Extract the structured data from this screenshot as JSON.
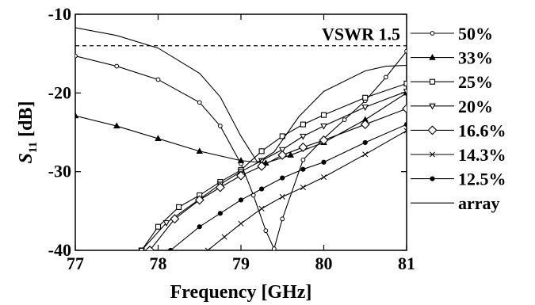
{
  "chart_data": {
    "type": "line",
    "xlabel": "Frequency [GHz]",
    "ylabel_main": "S",
    "ylabel_sub": "11",
    "ylabel_unit": " [dB]",
    "xlim": [
      77,
      81
    ],
    "ylim": [
      -40,
      -10
    ],
    "xticks": [
      77,
      78,
      79,
      80,
      81
    ],
    "yticks": [
      -10,
      -20,
      -30,
      -40
    ],
    "grid": false,
    "legend_position": "right-outside",
    "annotation": {
      "text": "VSWR 1.5",
      "y": -14.0
    },
    "series": [
      {
        "name": "50%",
        "marker": "circle-small",
        "points": [
          [
            77,
            -15.3
          ],
          [
            77.5,
            -16.6
          ],
          [
            78,
            -18.3
          ],
          [
            78.5,
            -21.2
          ],
          [
            78.75,
            -24.2
          ],
          [
            79,
            -29.0
          ],
          [
            79.15,
            -33.0
          ],
          [
            79.3,
            -37.5
          ],
          [
            79.4,
            -39.8
          ],
          [
            79.5,
            -36.0
          ],
          [
            79.75,
            -28.5
          ],
          [
            80,
            -25.8
          ],
          [
            80.25,
            -23.4
          ],
          [
            80.5,
            -21.0
          ],
          [
            80.75,
            -18.0
          ],
          [
            81,
            -14.7
          ]
        ]
      },
      {
        "name": "33%",
        "marker": "triangle",
        "points": [
          [
            77,
            -22.9
          ],
          [
            77.5,
            -24.2
          ],
          [
            78,
            -25.8
          ],
          [
            78.5,
            -27.4
          ],
          [
            79,
            -28.6
          ],
          [
            79.3,
            -28.9
          ],
          [
            79.6,
            -27.9
          ],
          [
            80,
            -26.3
          ],
          [
            80.5,
            -23.4
          ],
          [
            81,
            -20.0
          ]
        ]
      },
      {
        "name": "25%",
        "marker": "square",
        "points": [
          [
            77.8,
            -40.0
          ],
          [
            78,
            -37.0
          ],
          [
            78.25,
            -34.5
          ],
          [
            78.5,
            -33.0
          ],
          [
            78.75,
            -31.3
          ],
          [
            79,
            -29.8
          ],
          [
            79.25,
            -27.4
          ],
          [
            79.5,
            -25.5
          ],
          [
            79.75,
            -24.0
          ],
          [
            80,
            -22.8
          ],
          [
            80.5,
            -20.6
          ],
          [
            81,
            -18.8
          ]
        ]
      },
      {
        "name": "20%",
        "marker": "triangle-down",
        "points": [
          [
            77.8,
            -40.0
          ],
          [
            78.1,
            -36.5
          ],
          [
            78.5,
            -33.5
          ],
          [
            78.75,
            -31.6
          ],
          [
            79,
            -30.0
          ],
          [
            79.25,
            -28.6
          ],
          [
            79.5,
            -27.2
          ],
          [
            79.75,
            -25.5
          ],
          [
            80,
            -24.2
          ],
          [
            80.5,
            -21.8
          ],
          [
            81,
            -19.8
          ]
        ]
      },
      {
        "name": "16.6%",
        "marker": "diamond",
        "points": [
          [
            77.9,
            -40.0
          ],
          [
            78.2,
            -36.0
          ],
          [
            78.5,
            -33.6
          ],
          [
            78.75,
            -32.0
          ],
          [
            79,
            -30.5
          ],
          [
            79.25,
            -29.3
          ],
          [
            79.5,
            -27.9
          ],
          [
            79.75,
            -26.9
          ],
          [
            80,
            -26.0
          ],
          [
            80.5,
            -24.0
          ],
          [
            81,
            -22.0
          ]
        ]
      },
      {
        "name": "14.3%",
        "marker": "x",
        "points": [
          [
            78.6,
            -40.0
          ],
          [
            78.8,
            -38.3
          ],
          [
            79,
            -36.6
          ],
          [
            79.25,
            -34.7
          ],
          [
            79.5,
            -33.2
          ],
          [
            79.75,
            -32.0
          ],
          [
            80,
            -30.7
          ],
          [
            80.5,
            -27.8
          ],
          [
            81,
            -24.8
          ]
        ]
      },
      {
        "name": "12.5%",
        "marker": "dot",
        "points": [
          [
            78.15,
            -40.0
          ],
          [
            78.5,
            -37.0
          ],
          [
            78.75,
            -35.3
          ],
          [
            79,
            -33.6
          ],
          [
            79.25,
            -32.2
          ],
          [
            79.5,
            -30.8
          ],
          [
            79.75,
            -29.7
          ],
          [
            80,
            -28.8
          ],
          [
            80.5,
            -26.3
          ],
          [
            81,
            -24.0
          ]
        ]
      },
      {
        "name": "array",
        "marker": "none",
        "points": [
          [
            77,
            -11.7
          ],
          [
            77.5,
            -12.7
          ],
          [
            78,
            -14.3
          ],
          [
            78.5,
            -17.5
          ],
          [
            78.75,
            -20.5
          ],
          [
            79,
            -25.5
          ],
          [
            79.2,
            -28.8
          ],
          [
            79.4,
            -27.5
          ],
          [
            79.7,
            -23.0
          ],
          [
            80,
            -19.8
          ],
          [
            80.5,
            -17.2
          ],
          [
            80.75,
            -16.6
          ],
          [
            81,
            -16.5
          ]
        ]
      }
    ]
  }
}
